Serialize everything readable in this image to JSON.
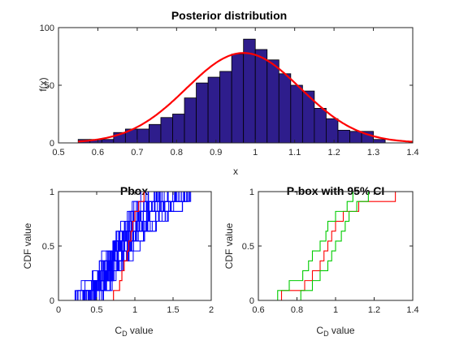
{
  "figure": {
    "background": "#ffffff"
  },
  "chart_data": [
    {
      "type": "bar",
      "title": "Posterior distribution",
      "xlabel": "x",
      "ylabel": "f(x)",
      "xlim": [
        0.5,
        1.4
      ],
      "ylim": [
        0,
        100
      ],
      "xticks": [
        "0.5",
        "0.6",
        "0.7",
        "0.8",
        "0.9",
        "1",
        "1.1",
        "1.2",
        "1.3",
        "1.4"
      ],
      "yticks": [
        "0",
        "50",
        "100"
      ],
      "grid": false,
      "bin_edges": [
        0.55,
        0.58,
        0.61,
        0.64,
        0.67,
        0.7,
        0.73,
        0.76,
        0.79,
        0.82,
        0.85,
        0.88,
        0.91,
        0.94,
        0.97,
        1.0,
        1.03,
        1.06,
        1.09,
        1.12,
        1.15,
        1.18,
        1.21,
        1.24,
        1.27,
        1.3,
        1.33
      ],
      "bin_values": [
        3,
        3,
        3,
        9,
        12,
        12,
        16,
        22,
        25,
        39,
        52,
        57,
        62,
        77,
        90,
        81,
        72,
        60,
        50,
        45,
        30,
        21,
        11,
        10,
        10,
        3
      ],
      "bar_color": "#2e1d8c",
      "fit": {
        "type": "normal",
        "mean": 0.97,
        "sd": 0.145,
        "peak": 78,
        "color": "#ff0000"
      }
    },
    {
      "type": "line",
      "title": "Pbox",
      "xlabel": "C",
      "xlabel_sub": "D",
      "xlabel_rest": " value",
      "ylabel": "CDF value",
      "xlim": [
        0,
        2
      ],
      "ylim": [
        0,
        1
      ],
      "xticks": [
        "0",
        "0.5",
        "1",
        "1.5",
        "2"
      ],
      "yticks": [
        "0",
        "0.5",
        "1"
      ],
      "n_steps": 11,
      "ensemble": {
        "count": 40,
        "left_bound": [
          0.2,
          0.9
        ],
        "right_bound": [
          0.75,
          1.75
        ],
        "color": "#0000ff"
      },
      "series": [
        {
          "color": "#ff0000",
          "x": [
            0.72,
            0.8,
            0.83,
            0.86,
            0.9,
            0.92,
            0.95,
            0.97,
            1.0,
            1.05,
            1.12
          ]
        }
      ]
    },
    {
      "type": "line",
      "title": "P-box with 95% CI",
      "xlabel": "C",
      "xlabel_sub": "D",
      "xlabel_rest": " value",
      "ylabel": "CDF value",
      "xlim": [
        0.6,
        1.4
      ],
      "ylim": [
        0,
        1
      ],
      "xticks": [
        "0.6",
        "0.8",
        "1",
        "1.2",
        "1.4"
      ],
      "yticks": [
        "0",
        "0.5",
        "1"
      ],
      "n_steps": 11,
      "series": [
        {
          "color": "#ff0000",
          "x": [
            0.72,
            0.84,
            0.88,
            0.92,
            0.94,
            0.96,
            0.98,
            1.0,
            1.04,
            1.12,
            1.31
          ]
        },
        {
          "color": "#00cc00",
          "x": [
            0.7,
            0.76,
            0.83,
            0.86,
            0.88,
            0.92,
            0.95,
            0.96,
            1.0,
            1.06,
            1.09
          ]
        },
        {
          "color": "#00cc00",
          "x": [
            0.82,
            0.88,
            0.92,
            0.96,
            0.98,
            1.0,
            1.03,
            1.05,
            1.07,
            1.11,
            1.17
          ]
        }
      ]
    }
  ]
}
